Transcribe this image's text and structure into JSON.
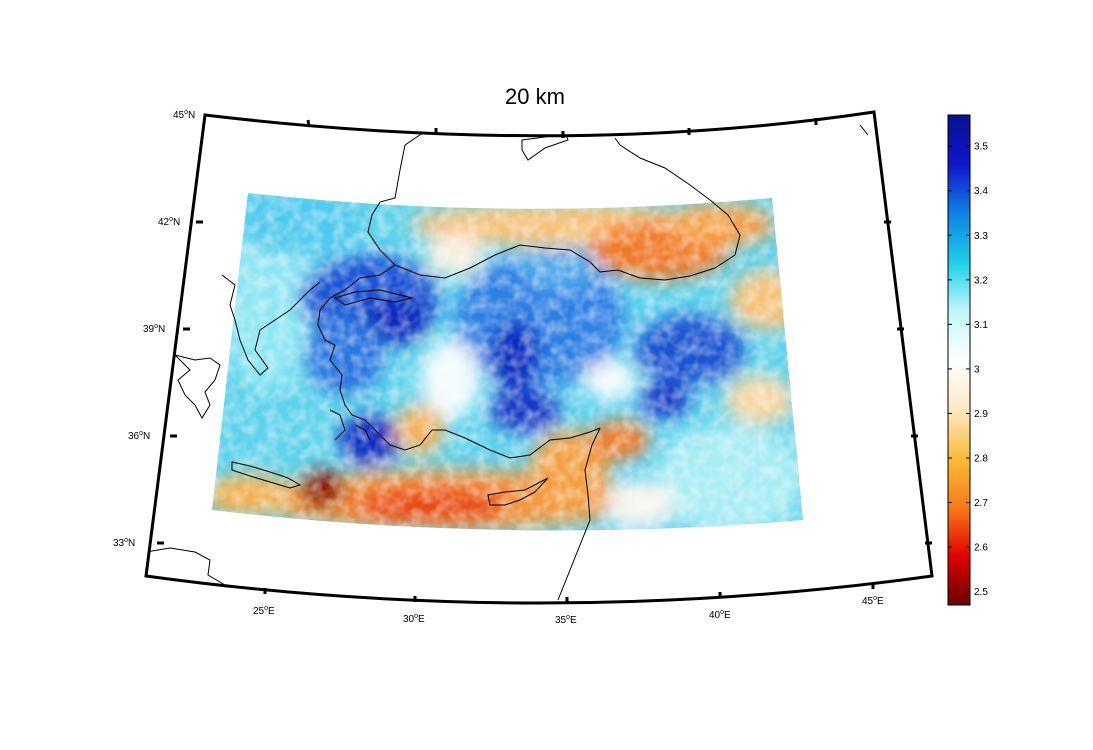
{
  "title": "20 km",
  "latitude_labels": [
    {
      "deg": "45",
      "hemi": "N"
    },
    {
      "deg": "42",
      "hemi": "N"
    },
    {
      "deg": "39",
      "hemi": "N"
    },
    {
      "deg": "36",
      "hemi": "N"
    },
    {
      "deg": "33",
      "hemi": "N"
    }
  ],
  "longitude_labels": [
    {
      "deg": "25",
      "hemi": "E"
    },
    {
      "deg": "30",
      "hemi": "E"
    },
    {
      "deg": "35",
      "hemi": "E"
    },
    {
      "deg": "40",
      "hemi": "E"
    },
    {
      "deg": "45",
      "hemi": "E"
    }
  ],
  "colorbar": {
    "min": 2.47,
    "max": 3.57,
    "ticks": [
      {
        "value": 3.5,
        "label": "3.5"
      },
      {
        "value": 3.4,
        "label": "3.4"
      },
      {
        "value": 3.3,
        "label": "3.3"
      },
      {
        "value": 3.2,
        "label": "3.2"
      },
      {
        "value": 3.1,
        "label": "3.1"
      },
      {
        "value": 3.0,
        "label": "3"
      },
      {
        "value": 2.9,
        "label": "2.9"
      },
      {
        "value": 2.8,
        "label": "2.8"
      },
      {
        "value": 2.7,
        "label": "2.7"
      },
      {
        "value": 2.6,
        "label": "2.6"
      },
      {
        "value": 2.5,
        "label": "2.5"
      }
    ],
    "colormap": [
      "#6b0000",
      "#e10000",
      "#f97c1a",
      "#fbbc3a",
      "#fbe9c6",
      "#ffffff",
      "#bff6f9",
      "#1ccfe6",
      "#1080e6",
      "#1015cc",
      "#0a1290"
    ]
  }
}
